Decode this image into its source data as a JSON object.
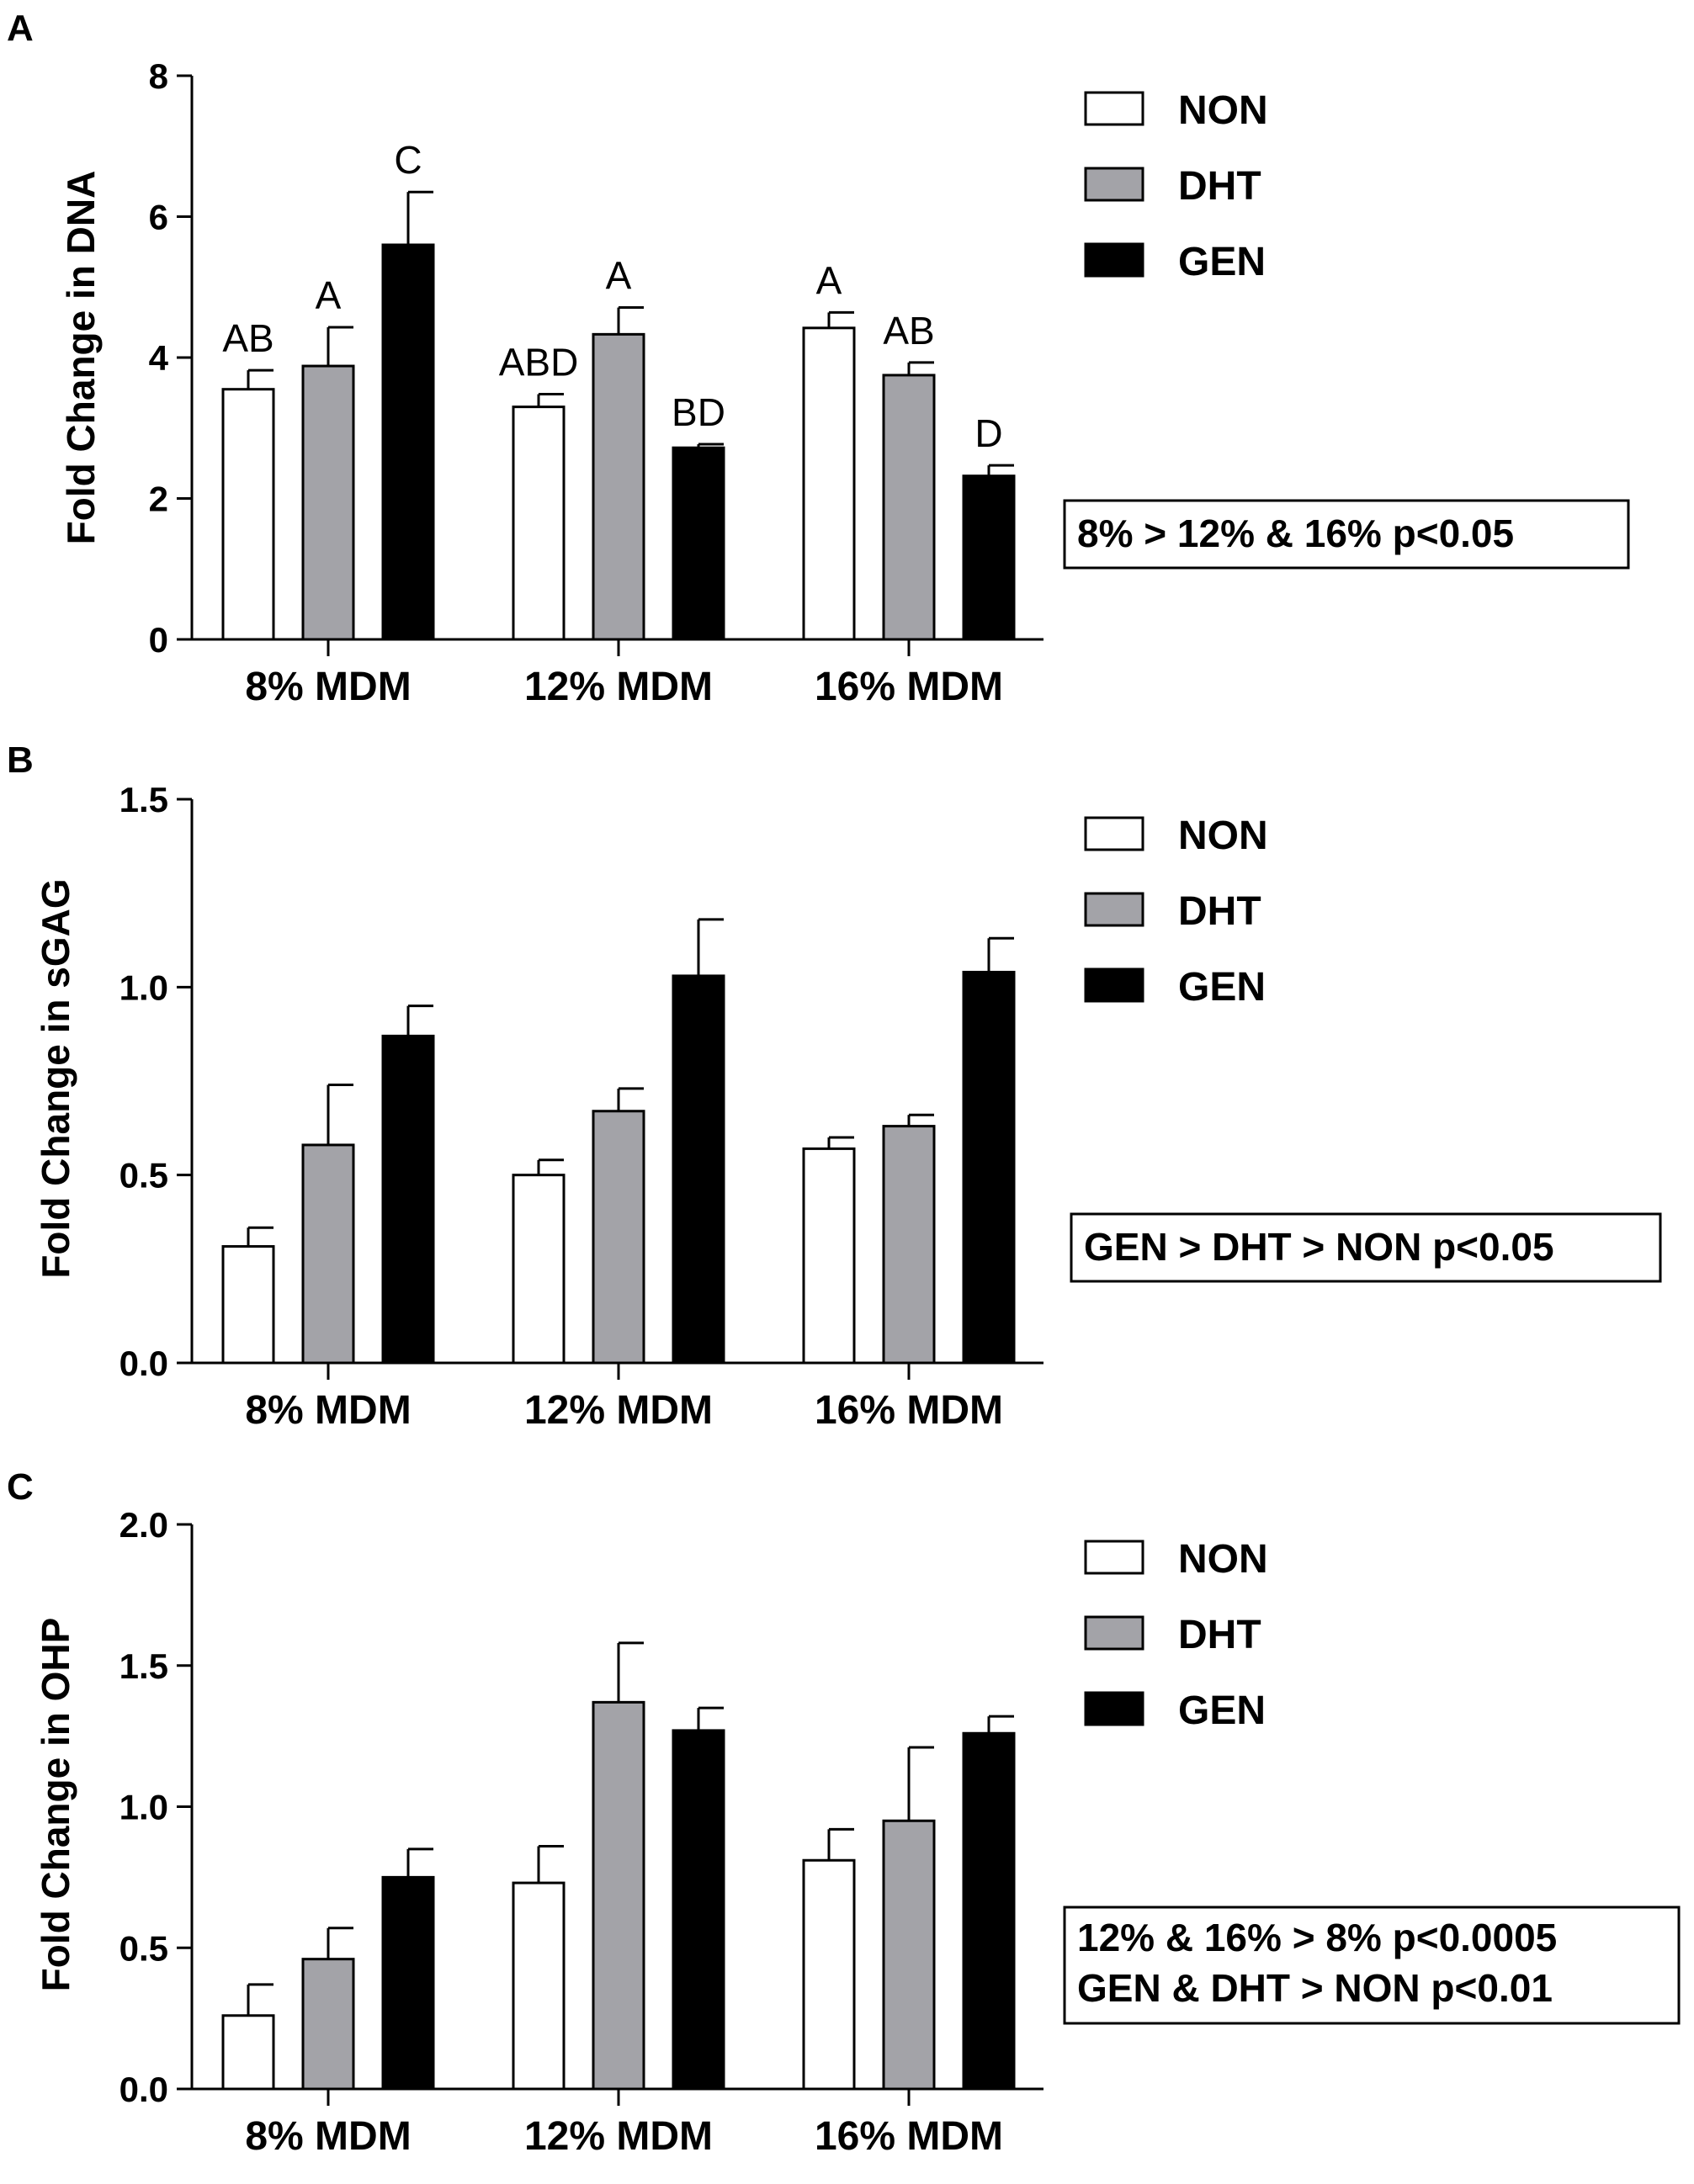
{
  "colors": {
    "NON": "#ffffff",
    "DHT": "#a3a3a8",
    "GEN": "#000000"
  },
  "chart_data": [
    {
      "type": "bar",
      "panel": "A",
      "ylabel": "Fold Change in DNA",
      "categories": [
        "8% MDM",
        "12% MDM",
        "16% MDM"
      ],
      "ylim": [
        0,
        8
      ],
      "yticks": [
        "0",
        "2",
        "4",
        "6",
        "8"
      ],
      "series": [
        {
          "name": "NON",
          "values": [
            3.55,
            3.3,
            4.42
          ],
          "errors": [
            0.27,
            0.18,
            0.22
          ],
          "labels": [
            "AB",
            "ABD",
            "A"
          ]
        },
        {
          "name": "DHT",
          "values": [
            3.88,
            4.33,
            3.75
          ],
          "errors": [
            0.55,
            0.38,
            0.18
          ],
          "labels": [
            "A",
            "A",
            "AB"
          ]
        },
        {
          "name": "GEN",
          "values": [
            5.6,
            2.72,
            2.32
          ],
          "errors": [
            0.75,
            0.05,
            0.15
          ],
          "labels": [
            "C",
            "BD",
            "D"
          ]
        }
      ],
      "legend": [
        "NON",
        "DHT",
        "GEN"
      ],
      "note": [
        "8% > 12% & 16% p<0.05"
      ]
    },
    {
      "type": "bar",
      "panel": "B",
      "ylabel": "Fold Change in sGAG",
      "categories": [
        "8% MDM",
        "12% MDM",
        "16% MDM"
      ],
      "ylim": [
        0,
        1.5
      ],
      "yticks": [
        "0.0",
        "0.5",
        "1.0",
        "1.5"
      ],
      "series": [
        {
          "name": "NON",
          "values": [
            0.31,
            0.5,
            0.57
          ],
          "errors": [
            0.05,
            0.04,
            0.03
          ]
        },
        {
          "name": "DHT",
          "values": [
            0.58,
            0.67,
            0.63
          ],
          "errors": [
            0.16,
            0.06,
            0.03
          ]
        },
        {
          "name": "GEN",
          "values": [
            0.87,
            1.03,
            1.04
          ],
          "errors": [
            0.08,
            0.15,
            0.09
          ]
        }
      ],
      "legend": [
        "NON",
        "DHT",
        "GEN"
      ],
      "note": [
        "GEN > DHT > NON p<0.05"
      ]
    },
    {
      "type": "bar",
      "panel": "C",
      "ylabel": "Fold Change in OHP",
      "categories": [
        "8% MDM",
        "12% MDM",
        "16% MDM"
      ],
      "ylim": [
        0,
        2.0
      ],
      "yticks": [
        "0.0",
        "0.5",
        "1.0",
        "1.5",
        "2.0"
      ],
      "series": [
        {
          "name": "NON",
          "values": [
            0.26,
            0.73,
            0.81
          ],
          "errors": [
            0.11,
            0.13,
            0.11
          ]
        },
        {
          "name": "DHT",
          "values": [
            0.46,
            1.37,
            0.95
          ],
          "errors": [
            0.11,
            0.21,
            0.26
          ]
        },
        {
          "name": "GEN",
          "values": [
            0.75,
            1.27,
            1.26
          ],
          "errors": [
            0.1,
            0.08,
            0.06
          ]
        }
      ],
      "legend": [
        "NON",
        "DHT",
        "GEN"
      ],
      "note": [
        "12% & 16% > 8% p<0.0005",
        "GEN & DHT > NON p<0.01"
      ]
    }
  ]
}
